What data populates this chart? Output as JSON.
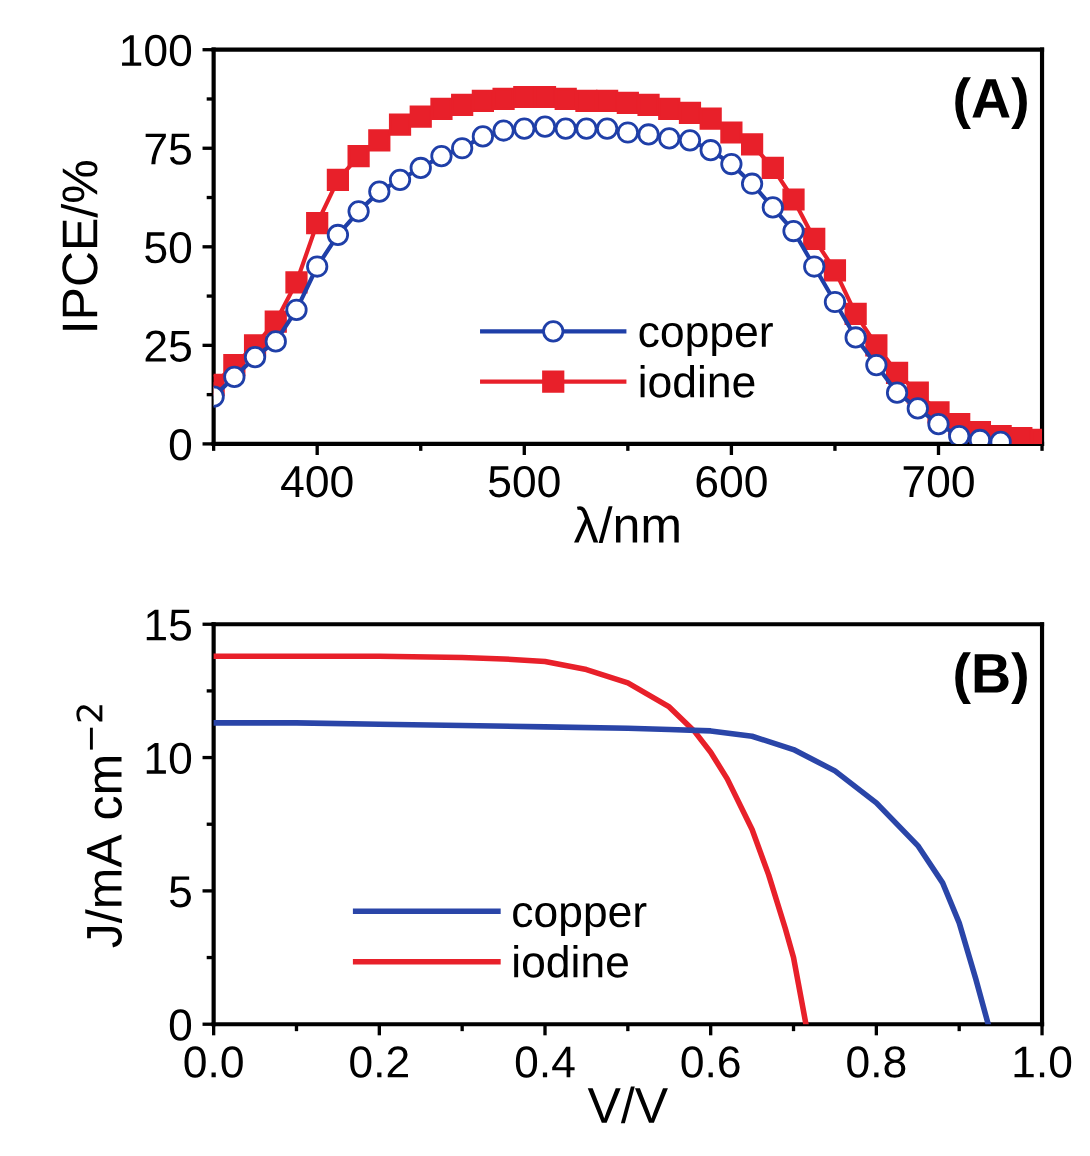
{
  "chart_data": [
    {
      "type": "line",
      "xlabel": "λ/nm",
      "ylabel": "IPCE/%",
      "annotations": [
        "(A)"
      ],
      "legend": "bottom",
      "grid": false,
      "xlim": [
        350,
        750
      ],
      "xticks": [
        {
          "value": 350,
          "label": null
        },
        400,
        {
          "value": 450,
          "label": null
        },
        500,
        {
          "value": 550,
          "label": null
        },
        600,
        {
          "value": 650,
          "label": null
        },
        700,
        {
          "value": 750,
          "label": null
        }
      ],
      "ylim": [
        0,
        100
      ],
      "yticks": [
        0,
        {
          "value": 12.5,
          "label": null
        },
        25,
        {
          "value": 37.5,
          "label": null
        },
        50,
        {
          "value": 62.5,
          "label": null
        },
        75,
        {
          "value": 87.5,
          "label": null
        },
        100
      ],
      "x": [
        350,
        360,
        370,
        380,
        390,
        400,
        410,
        420,
        430,
        440,
        450,
        460,
        470,
        480,
        490,
        500,
        510,
        520,
        530,
        540,
        550,
        560,
        570,
        580,
        590,
        600,
        610,
        620,
        630,
        640,
        650,
        660,
        670,
        680,
        690,
        700,
        710,
        720,
        730,
        740,
        750
      ],
      "series": [
        {
          "name": "copper",
          "color": "#1f3fa8",
          "marker": "circle",
          "values": [
            12,
            17,
            22,
            26,
            34,
            45,
            53,
            59,
            64,
            67,
            70,
            73,
            75,
            78,
            79.5,
            80,
            80.5,
            80,
            80,
            80,
            79,
            78.5,
            77.5,
            77,
            74.5,
            71,
            66,
            60,
            54,
            45,
            36,
            27,
            20,
            13,
            9,
            5,
            2,
            1,
            0.5,
            null,
            null
          ]
        },
        {
          "name": "iodine",
          "color": "#e8202a",
          "marker": "square",
          "values": [
            15,
            20,
            25,
            31,
            41,
            56,
            67,
            73,
            77,
            81,
            83,
            85,
            86,
            87,
            87.5,
            88,
            88,
            87.5,
            87,
            87,
            86.5,
            86,
            85,
            84,
            82.5,
            79,
            76,
            70,
            62,
            52,
            44,
            33,
            25,
            18,
            13,
            8,
            5,
            3,
            2,
            1.5,
            1
          ]
        }
      ]
    },
    {
      "type": "line",
      "xlabel": "V/V",
      "ylabel": "J/mA cm$^{−2}$",
      "annotations": [
        "(B)"
      ],
      "legend": "bottom left",
      "grid": false,
      "marker": "none",
      "xlim": [
        0,
        1
      ],
      "xticks": [
        {
          "value": 0,
          "label": "0.0"
        },
        {
          "value": 0.1,
          "label": null
        },
        {
          "value": 0.2,
          "label": "0.2"
        },
        {
          "value": 0.3,
          "label": null
        },
        {
          "value": 0.4,
          "label": "0.4"
        },
        {
          "value": 0.5,
          "label": null
        },
        {
          "value": 0.6,
          "label": "0.6"
        },
        {
          "value": 0.7,
          "label": null
        },
        {
          "value": 0.8,
          "label": "0.8"
        },
        {
          "value": 0.9,
          "label": null
        },
        {
          "value": 1.0,
          "label": "1.0"
        }
      ],
      "ylim": [
        0,
        15
      ],
      "yticks": [
        0,
        {
          "value": 2.5,
          "label": null
        },
        5,
        {
          "value": 7.5,
          "label": null
        },
        10,
        {
          "value": 12.5,
          "label": null
        },
        15
      ],
      "series": [
        {
          "name": "copper",
          "color": "#2a45a8",
          "x": [
            0,
            0.1,
            0.2,
            0.3,
            0.4,
            0.5,
            0.55,
            0.6,
            0.65,
            0.7,
            0.75,
            0.8,
            0.85,
            0.88,
            0.9,
            0.92,
            0.935
          ],
          "values": [
            11.3,
            11.3,
            11.25,
            11.2,
            11.15,
            11.1,
            11.05,
            11.0,
            10.8,
            10.3,
            9.5,
            8.3,
            6.7,
            5.3,
            3.8,
            1.7,
            0
          ]
        },
        {
          "name": "iodine",
          "color": "#e8202a",
          "x": [
            0,
            0.1,
            0.2,
            0.3,
            0.35,
            0.4,
            0.45,
            0.5,
            0.55,
            0.58,
            0.6,
            0.62,
            0.65,
            0.67,
            0.69,
            0.7,
            0.715
          ],
          "values": [
            13.8,
            13.8,
            13.8,
            13.75,
            13.7,
            13.6,
            13.3,
            12.8,
            11.9,
            11.0,
            10.2,
            9.2,
            7.3,
            5.6,
            3.6,
            2.5,
            0
          ]
        }
      ]
    }
  ]
}
